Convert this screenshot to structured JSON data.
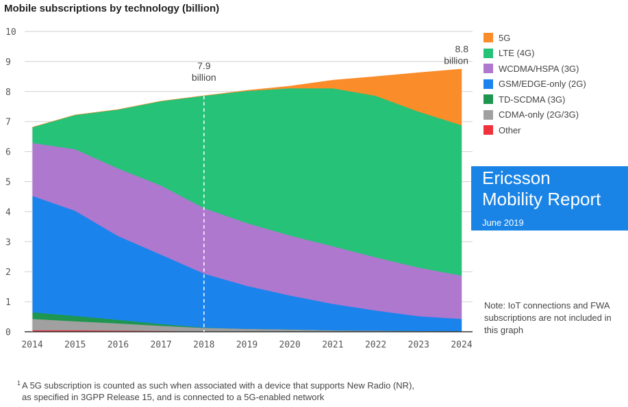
{
  "chart_data": {
    "type": "area",
    "stacked": true,
    "title": "Mobile subscriptions by technology (billion)",
    "xlabel": "",
    "ylabel": "",
    "x": [
      "2014",
      "2015",
      "2016",
      "2017",
      "2018",
      "2019",
      "2020",
      "2021",
      "2022",
      "2023",
      "2024"
    ],
    "ylim": [
      0,
      10
    ],
    "yticks": [
      "0",
      "1",
      "2",
      "3",
      "4",
      "5",
      "6",
      "7",
      "8",
      "9",
      "10"
    ],
    "grid": true,
    "legend_position": "right",
    "series": [
      {
        "name": "Other",
        "color": "#f0323c",
        "values": [
          0.05,
          0.05,
          0.04,
          0.03,
          0.01,
          0.0,
          0.0,
          0.0,
          0.0,
          0.0,
          0.0
        ]
      },
      {
        "name": "CDMA-only (2G/3G)",
        "color": "#a0a0a0",
        "values": [
          0.38,
          0.3,
          0.24,
          0.17,
          0.12,
          0.1,
          0.08,
          0.05,
          0.04,
          0.03,
          0.02
        ]
      },
      {
        "name": "TD-SCDMA (3G)",
        "color": "#1e9650",
        "values": [
          0.22,
          0.18,
          0.12,
          0.06,
          0.01,
          0.0,
          0.0,
          0.0,
          0.0,
          0.0,
          0.0
        ]
      },
      {
        "name": "GSM/EDGE-only (2G)",
        "color": "#1a84ec",
        "values": [
          3.88,
          3.5,
          2.79,
          2.31,
          1.8,
          1.43,
          1.13,
          0.88,
          0.67,
          0.49,
          0.41
        ]
      },
      {
        "name": "WCDMA/HSPA (3G)",
        "color": "#ae78cf",
        "values": [
          1.76,
          2.05,
          2.25,
          2.3,
          2.18,
          2.09,
          2.0,
          1.92,
          1.77,
          1.62,
          1.44
        ]
      },
      {
        "name": "LTE (4G)",
        "color": "#25c277",
        "values": [
          0.52,
          1.14,
          1.96,
          2.81,
          3.74,
          4.4,
          4.9,
          5.26,
          5.38,
          5.19,
          5.01
        ]
      },
      {
        "name": "5G",
        "color": "#fa8c2a",
        "values": [
          0.0,
          0.0,
          0.0,
          0.0,
          0.0,
          0.02,
          0.07,
          0.27,
          0.64,
          1.3,
          1.87
        ]
      }
    ],
    "annotations": [
      {
        "x": "2018",
        "value": 7.9,
        "line1": "7.9",
        "line2": "billion",
        "dashed_line": true
      },
      {
        "x": "2024",
        "value": 8.8,
        "line1": "8.8",
        "line2": "billion",
        "dashed_line": false
      }
    ],
    "legend_order": [
      "5G",
      "LTE (4G)",
      "WCDMA/HSPA (3G)",
      "GSM/EDGE-only (2G)",
      "TD-SCDMA (3G)",
      "CDMA-only (2G/3G)",
      "Other"
    ]
  },
  "branding": {
    "line1": "Ericsson",
    "line2": "Mobility Report",
    "line3": "June 2019",
    "color": "#1a84e6"
  },
  "note": "Note: IoT connections and FWA subscriptions are not included in this graph",
  "footnote": {
    "marker": "1",
    "line1": "A 5G subscription is counted as such when associated with a device that supports New Radio (NR),",
    "line2": "as specified in 3GPP Release 15, and is connected to a 5G-enabled network"
  }
}
